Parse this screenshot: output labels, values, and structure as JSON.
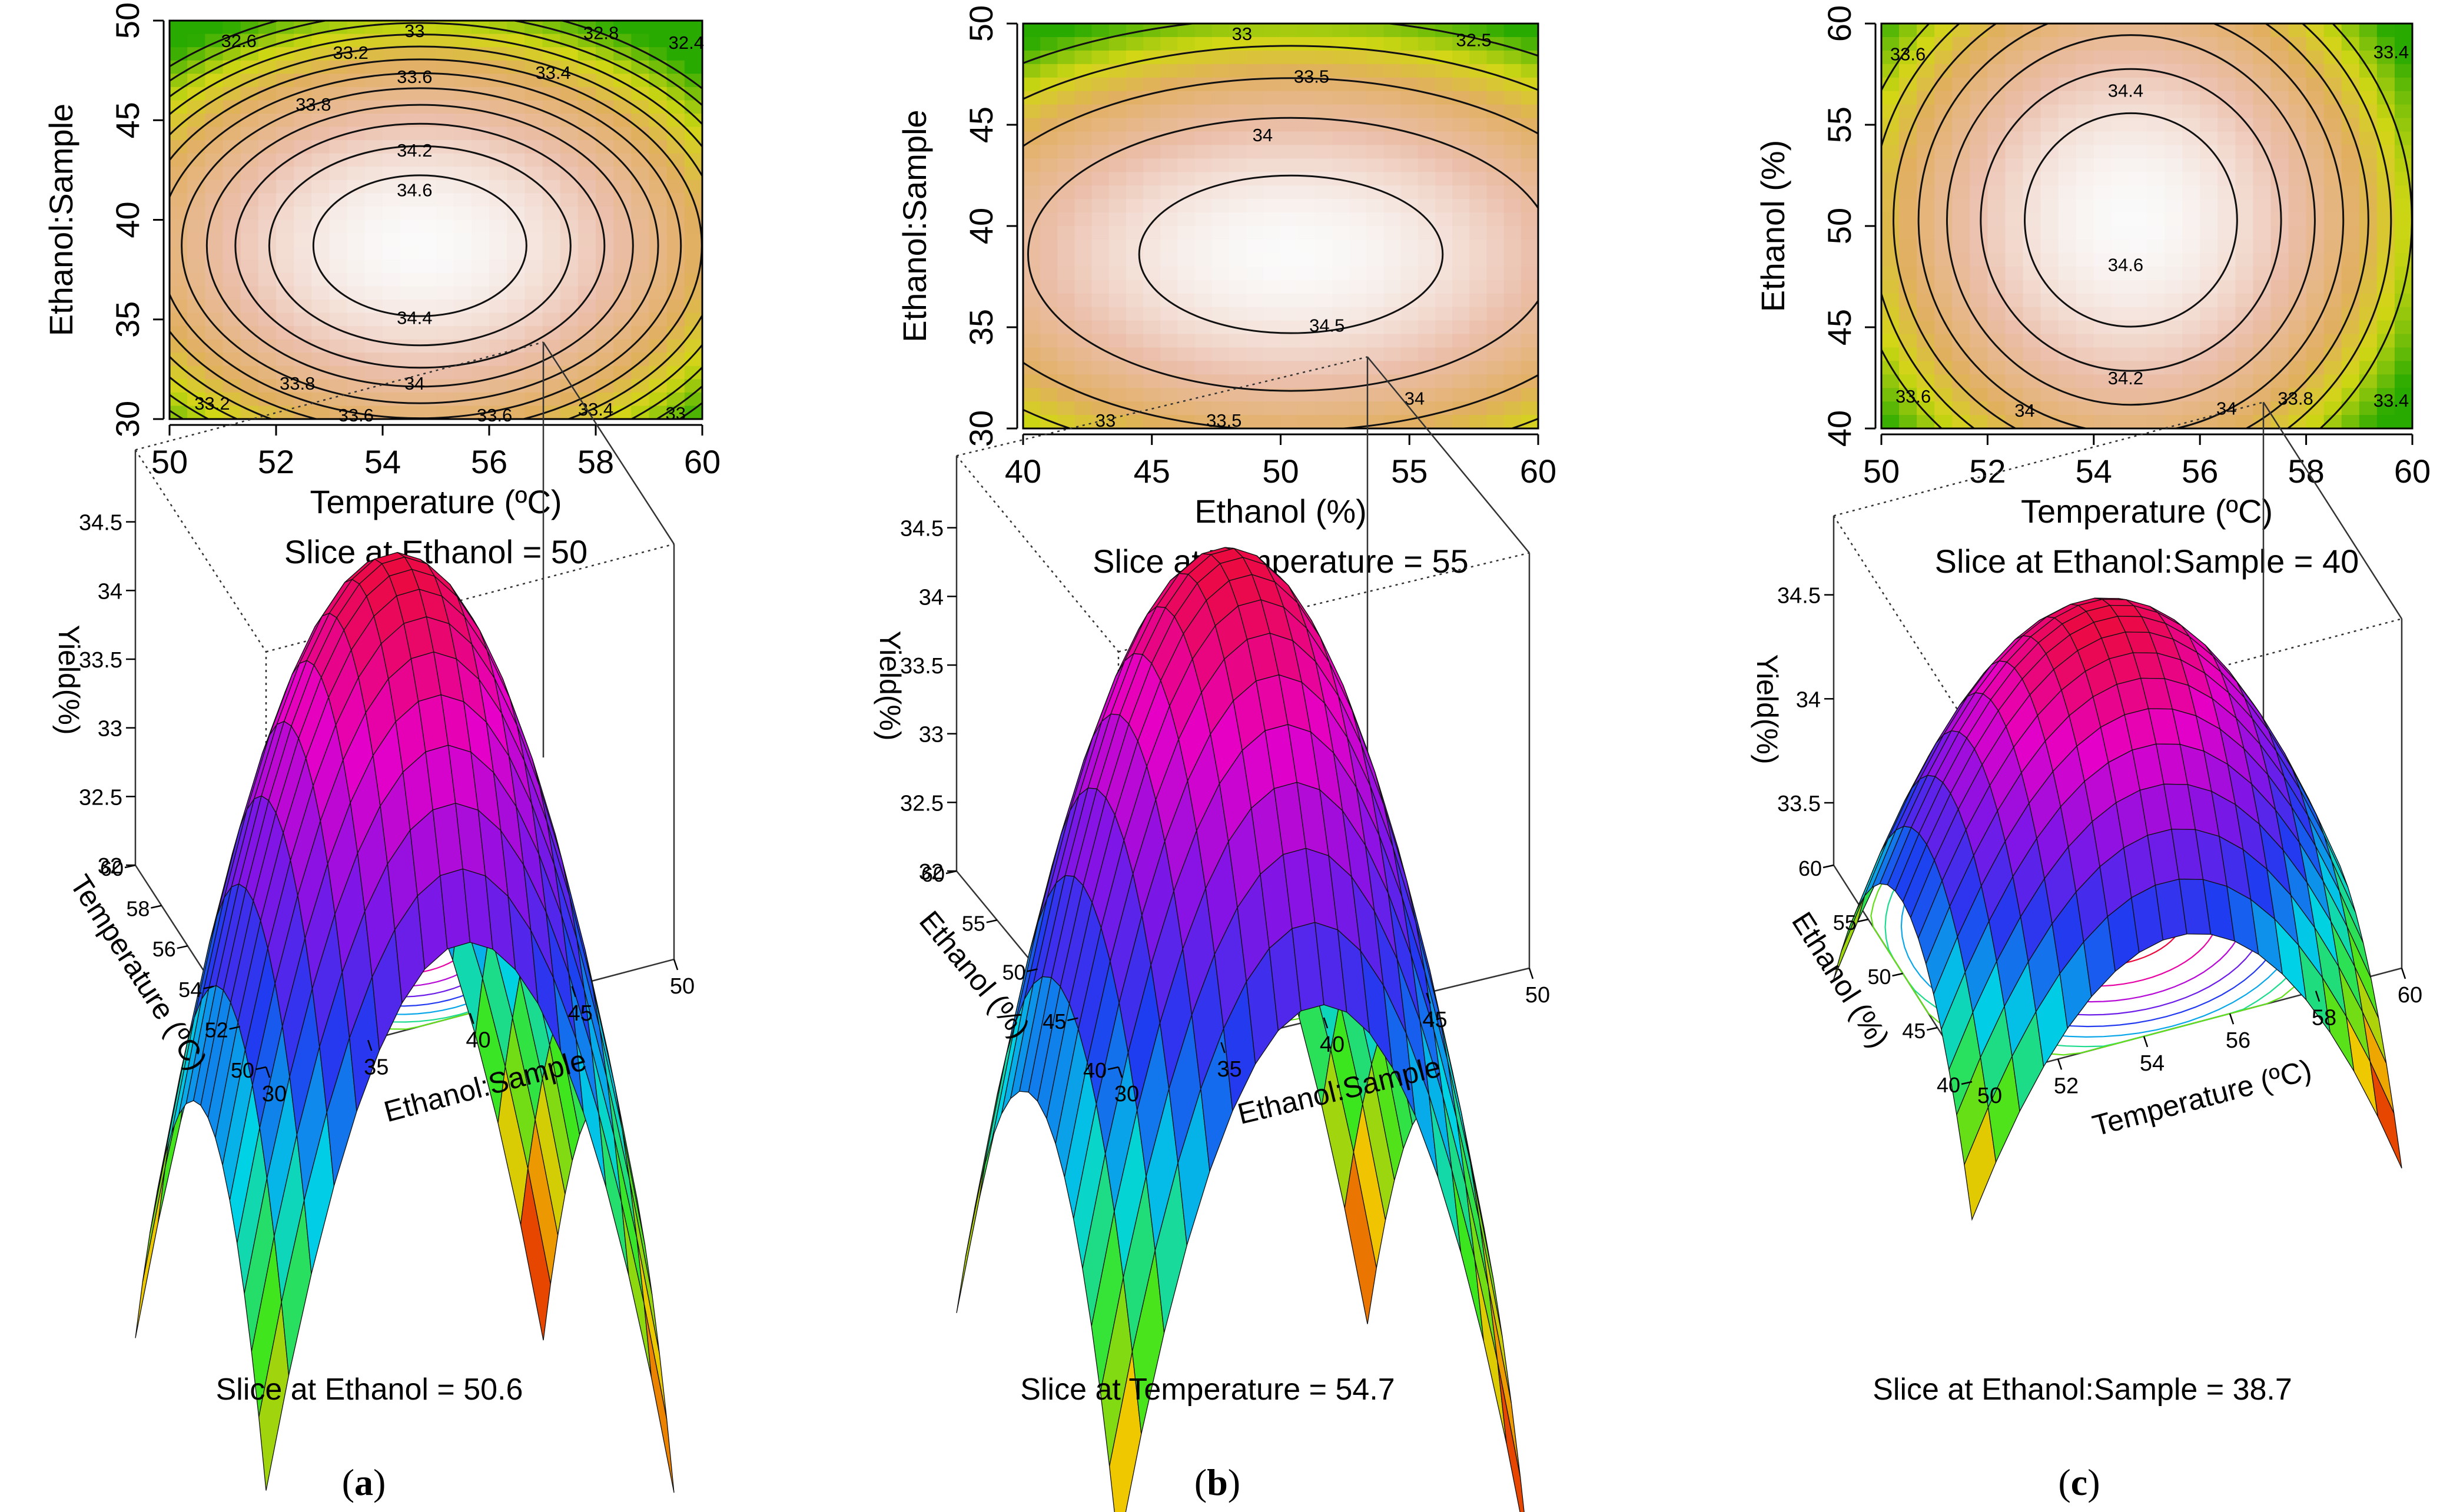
{
  "figure": {
    "panel_labels": [
      "a",
      "b",
      "c"
    ]
  },
  "chart_data": [
    {
      "id": "a-contour",
      "type": "heatmap",
      "style": "contour",
      "xlabel": "Temperature (ºC)",
      "ylabel": "Ethanol:Sample",
      "subtitle": "Slice at Ethanol = 50",
      "xlim": [
        50,
        60
      ],
      "ylim": [
        30,
        50
      ],
      "xticks": [
        50,
        52,
        54,
        56,
        58,
        60
      ],
      "yticks": [
        30,
        35,
        40,
        45,
        50
      ],
      "model": {
        "zmax": 34.8,
        "x0": 54.7,
        "y0": 38.7,
        "ax": 0.05,
        "by": 0.016,
        "zmin": 32.2
      },
      "contour_levels": [
        32.4,
        32.6,
        32.8,
        33.0,
        33.2,
        33.4,
        33.6,
        33.8,
        34.0,
        34.2,
        34.4,
        34.6
      ],
      "contour_labels": [
        {
          "text": "32.6",
          "x": 51.3,
          "y": 49.0
        },
        {
          "text": "33",
          "x": 54.6,
          "y": 49.5
        },
        {
          "text": "32.8",
          "x": 58.1,
          "y": 49.4
        },
        {
          "text": "32.4",
          "x": 59.7,
          "y": 48.9
        },
        {
          "text": "33.2",
          "x": 53.4,
          "y": 48.4
        },
        {
          "text": "33.6",
          "x": 54.6,
          "y": 47.2
        },
        {
          "text": "33.4",
          "x": 57.2,
          "y": 47.4
        },
        {
          "text": "33.8",
          "x": 52.7,
          "y": 45.8
        },
        {
          "text": "34.2",
          "x": 54.6,
          "y": 43.5
        },
        {
          "text": "34.6",
          "x": 54.6,
          "y": 41.5
        },
        {
          "text": "34.4",
          "x": 54.6,
          "y": 35.1
        },
        {
          "text": "34",
          "x": 54.6,
          "y": 31.8
        },
        {
          "text": "33.8",
          "x": 52.4,
          "y": 31.8
        },
        {
          "text": "33.6",
          "x": 53.5,
          "y": 30.2
        },
        {
          "text": "33.6",
          "x": 56.1,
          "y": 30.2
        },
        {
          "text": "33.4",
          "x": 58.0,
          "y": 30.5
        },
        {
          "text": "33.2",
          "x": 50.8,
          "y": 30.8
        },
        {
          "text": "33",
          "x": 59.5,
          "y": 30.3
        }
      ]
    },
    {
      "id": "b-contour",
      "type": "heatmap",
      "style": "contour",
      "xlabel": "Ethanol (%)",
      "ylabel": "Ethanol:Sample",
      "subtitle": "Slice at Temperature = 55",
      "xlim": [
        40,
        60
      ],
      "ylim": [
        30,
        50
      ],
      "xticks": [
        40,
        45,
        50,
        55,
        60
      ],
      "yticks": [
        30,
        35,
        40,
        45,
        50
      ],
      "model": {
        "zmax": 34.75,
        "x0": 50.4,
        "y0": 38.6,
        "ax": 0.0072,
        "by": 0.0165,
        "zmin": 32.2
      },
      "contour_levels": [
        32.5,
        33.0,
        33.5,
        34.0,
        34.5
      ],
      "contour_labels": [
        {
          "text": "33",
          "x": 48.5,
          "y": 49.5
        },
        {
          "text": "32.5",
          "x": 57.5,
          "y": 49.2
        },
        {
          "text": "33.5",
          "x": 51.2,
          "y": 47.4
        },
        {
          "text": "34",
          "x": 49.3,
          "y": 44.5
        },
        {
          "text": "34.5",
          "x": 51.8,
          "y": 35.1
        },
        {
          "text": "34",
          "x": 55.2,
          "y": 31.5
        },
        {
          "text": "33.5",
          "x": 47.8,
          "y": 30.4
        },
        {
          "text": "33",
          "x": 43.2,
          "y": 30.4
        }
      ]
    },
    {
      "id": "c-contour",
      "type": "heatmap",
      "style": "contour",
      "xlabel": "Temperature (ºC)",
      "ylabel": "Ethanol (%)",
      "subtitle": "Slice at Ethanol:Sample = 40",
      "xlim": [
        50,
        60
      ],
      "ylim": [
        40,
        60
      ],
      "xticks": [
        50,
        52,
        54,
        56,
        58,
        60
      ],
      "yticks": [
        40,
        45,
        50,
        55,
        60
      ],
      "model": {
        "zmax": 34.8,
        "x0": 54.7,
        "y0": 50.3,
        "ax": 0.05,
        "by": 0.0072,
        "zmin": 33.0
      },
      "contour_levels": [
        33.4,
        33.6,
        33.8,
        34.0,
        34.2,
        34.4,
        34.6
      ],
      "contour_labels": [
        {
          "text": "33.6",
          "x": 50.5,
          "y": 58.5
        },
        {
          "text": "33.4",
          "x": 59.6,
          "y": 58.6
        },
        {
          "text": "34.4",
          "x": 54.6,
          "y": 56.7
        },
        {
          "text": "34.6",
          "x": 54.6,
          "y": 48.1
        },
        {
          "text": "34.2",
          "x": 54.6,
          "y": 42.5
        },
        {
          "text": "34",
          "x": 52.7,
          "y": 40.9
        },
        {
          "text": "34",
          "x": 56.5,
          "y": 41.0
        },
        {
          "text": "33.8",
          "x": 57.8,
          "y": 41.5
        },
        {
          "text": "33.6",
          "x": 50.6,
          "y": 41.6
        },
        {
          "text": "33.4",
          "x": 59.6,
          "y": 41.4
        }
      ]
    },
    {
      "id": "a-surface",
      "type": "surface",
      "zlabel": "Yield(%)",
      "xlabel": "Ethanol:Sample",
      "ylabel": "Temperature (ºC)",
      "subtitle": "Slice at Ethanol = 50.6",
      "xlim": [
        30,
        50
      ],
      "ylim": [
        50,
        60
      ],
      "zlim": [
        32.0,
        34.7
      ],
      "xticks": [
        30,
        35,
        40,
        45,
        50
      ],
      "yticks": [
        50,
        52,
        54,
        56,
        58,
        60
      ],
      "zticks": [
        32.0,
        32.5,
        33.0,
        33.5,
        34.0,
        34.5
      ],
      "model": {
        "zmax": 34.6,
        "x0": 39.5,
        "y0": 54.8,
        "ax": 0.04,
        "by": 0.09
      }
    },
    {
      "id": "b-surface",
      "type": "surface",
      "zlabel": "Yield(%)",
      "xlabel": "Ethanol:Sample",
      "ylabel": "Ethanol (%)",
      "subtitle": "Slice at Temperature = 54.7",
      "xlim": [
        30,
        50
      ],
      "ylim": [
        40,
        60
      ],
      "zlim": [
        32.0,
        34.7
      ],
      "xticks": [
        30,
        35,
        40,
        45,
        50
      ],
      "yticks": [
        40,
        45,
        50,
        55,
        60
      ],
      "zticks": [
        32.0,
        32.5,
        33.0,
        33.5,
        34.0,
        34.5
      ],
      "model": {
        "zmax": 34.65,
        "x0": 39.5,
        "y0": 50.3,
        "ax": 0.04,
        "by": 0.024
      }
    },
    {
      "id": "c-surface",
      "type": "surface",
      "zlabel": "Yield(%)",
      "xlabel": "Temperature (ºC)",
      "ylabel": "Ethanol (%)",
      "subtitle": "Slice at Ethanol:Sample = 38.7",
      "xlim": [
        50,
        60
      ],
      "ylim": [
        40,
        60
      ],
      "zlim": [
        33.2,
        34.7
      ],
      "xticks": [
        52,
        54,
        56,
        58,
        60
      ],
      "xticks_extra": [
        50
      ],
      "yticks": [
        40,
        45,
        50,
        55,
        60
      ],
      "zticks": [
        33.5,
        34.0,
        34.5
      ],
      "model": {
        "zmax": 34.65,
        "x0": 54.7,
        "y0": 50.3,
        "ax": 0.05,
        "by": 0.0095
      }
    }
  ]
}
